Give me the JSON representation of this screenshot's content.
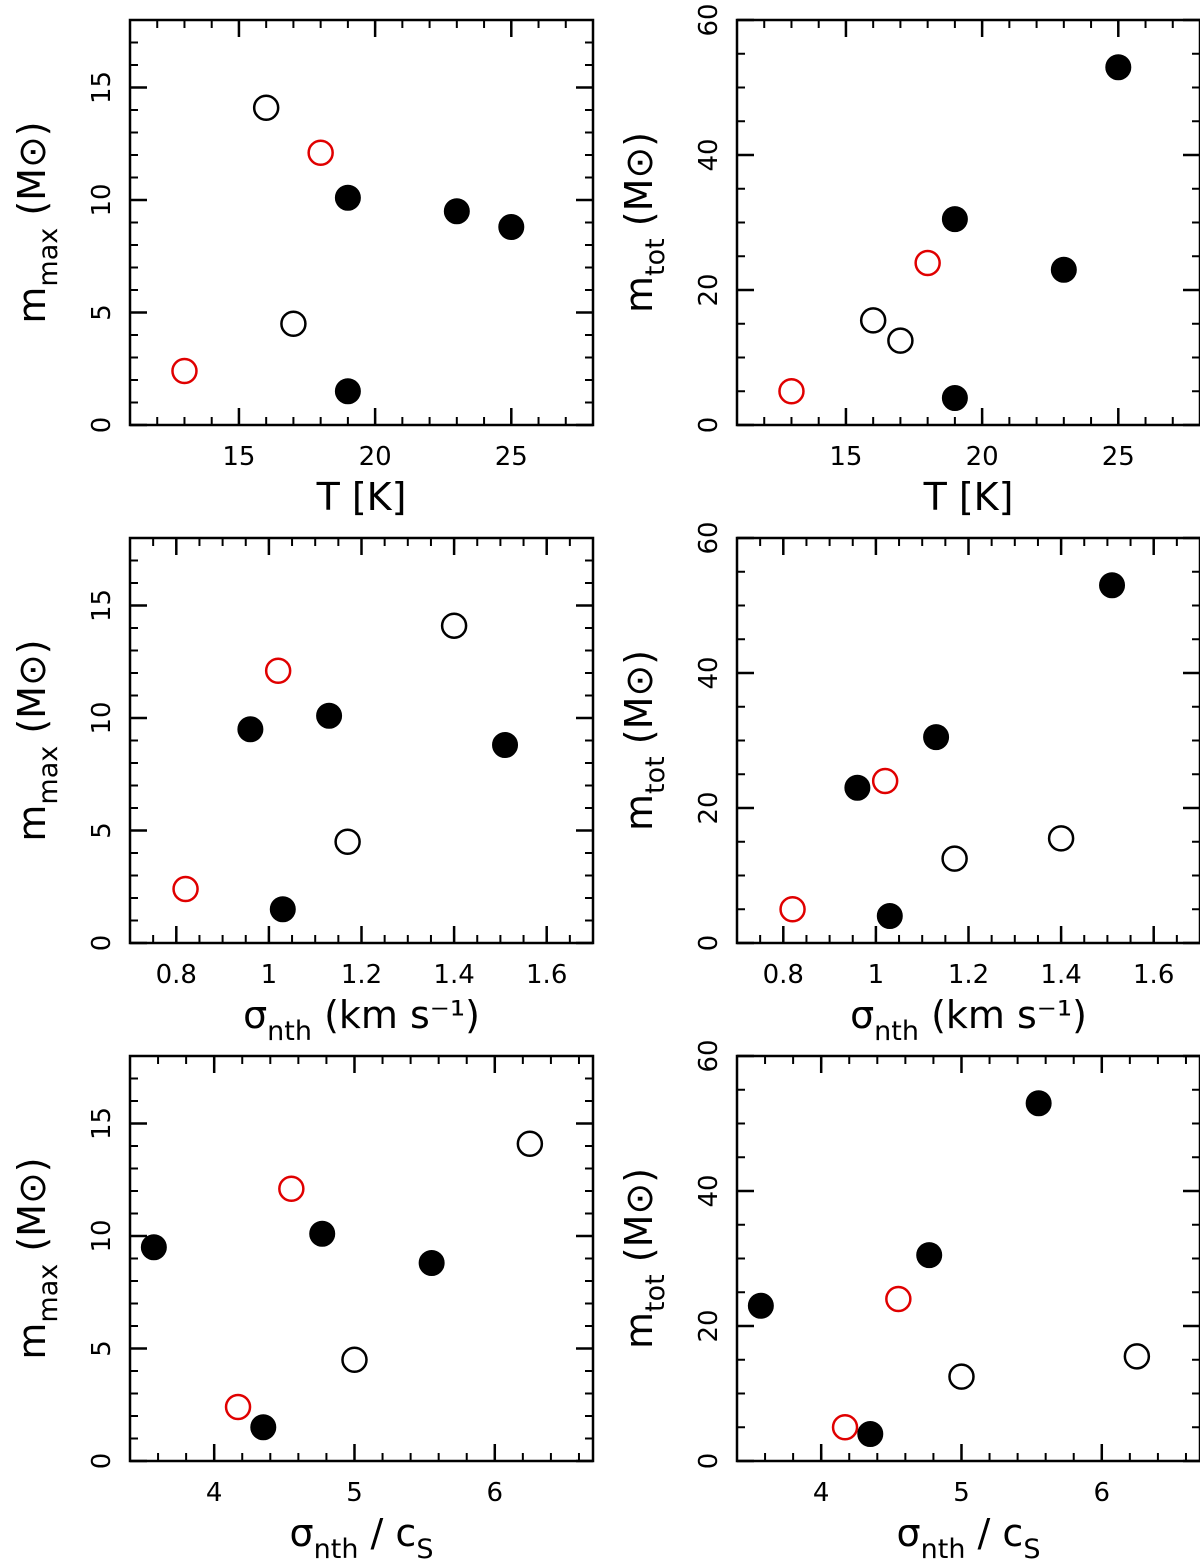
{
  "symbols": {
    "filled": "#000000",
    "open": "#000000",
    "open_red": "#e00000"
  },
  "chart_data": [
    {
      "type": "scatter",
      "row": 0,
      "col": 0,
      "x": [
        13,
        16,
        17,
        18,
        19,
        19,
        23,
        25
      ],
      "y": [
        2.4,
        14.1,
        4.5,
        12.1,
        10.1,
        1.5,
        9.5,
        8.8
      ],
      "style": [
        "open_red",
        "open",
        "open",
        "open_red",
        "filled",
        "filled",
        "filled",
        "filled"
      ],
      "xlabel": {
        "main": "T",
        "sub": "",
        "rest": " [K]"
      },
      "ylabel": {
        "main": "m",
        "sub": "max",
        "rest": " (M⊙)"
      },
      "xlim": [
        11,
        28
      ],
      "ylim": [
        0,
        18
      ],
      "xticks": [
        "15",
        "20",
        "25"
      ],
      "xtick_values": [
        15,
        20,
        25
      ],
      "yticks": [
        "0",
        "5",
        "10",
        "15"
      ],
      "ytick_values": [
        0,
        5,
        10,
        15
      ],
      "xminor": 1,
      "yminor": 1
    },
    {
      "type": "scatter",
      "row": 0,
      "col": 1,
      "x": [
        13,
        16,
        17,
        18,
        19,
        19,
        23,
        25
      ],
      "y": [
        5,
        15.5,
        12.5,
        24,
        30.5,
        4,
        23,
        53
      ],
      "style": [
        "open_red",
        "open",
        "open",
        "open_red",
        "filled",
        "filled",
        "filled",
        "filled"
      ],
      "xlabel": {
        "main": "T",
        "sub": "",
        "rest": " [K]"
      },
      "ylabel": {
        "main": "m",
        "sub": "tot",
        "rest": " (M⊙)"
      },
      "xlim": [
        11,
        28
      ],
      "ylim": [
        0,
        60
      ],
      "xticks": [
        "15",
        "20",
        "25"
      ],
      "xtick_values": [
        15,
        20,
        25
      ],
      "yticks": [
        "0",
        "20",
        "40",
        "60"
      ],
      "ytick_values": [
        0,
        20,
        40,
        60
      ],
      "xminor": 1,
      "yminor": 5
    },
    {
      "type": "scatter",
      "row": 1,
      "col": 0,
      "x": [
        0.82,
        0.96,
        1.02,
        1.03,
        1.13,
        1.17,
        1.4,
        1.51
      ],
      "y": [
        2.4,
        9.5,
        12.1,
        1.5,
        10.1,
        4.5,
        14.1,
        8.8
      ],
      "style": [
        "open_red",
        "filled",
        "open_red",
        "filled",
        "filled",
        "open",
        "open",
        "filled"
      ],
      "xlabel": {
        "main": "σ",
        "sub": "nth",
        "rest": " (km s⁻¹)"
      },
      "ylabel": {
        "main": "m",
        "sub": "max",
        "rest": " (M⊙)"
      },
      "xlim": [
        0.7,
        1.7
      ],
      "ylim": [
        0,
        18
      ],
      "xticks": [
        "0.8",
        "1",
        "1.2",
        "1.4",
        "1.6"
      ],
      "xtick_values": [
        0.8,
        1.0,
        1.2,
        1.4,
        1.6
      ],
      "yticks": [
        "0",
        "5",
        "10",
        "15"
      ],
      "ytick_values": [
        0,
        5,
        10,
        15
      ],
      "xminor": 0.05,
      "yminor": 1
    },
    {
      "type": "scatter",
      "row": 1,
      "col": 1,
      "x": [
        0.82,
        0.96,
        1.02,
        1.03,
        1.13,
        1.17,
        1.4,
        1.51
      ],
      "y": [
        5,
        23,
        24,
        4,
        30.5,
        12.5,
        15.5,
        53
      ],
      "style": [
        "open_red",
        "filled",
        "open_red",
        "filled",
        "filled",
        "open",
        "open",
        "filled"
      ],
      "xlabel": {
        "main": "σ",
        "sub": "nth",
        "rest": " (km s⁻¹)"
      },
      "ylabel": {
        "main": "m",
        "sub": "tot",
        "rest": " (M⊙)"
      },
      "xlim": [
        0.7,
        1.7
      ],
      "ylim": [
        0,
        60
      ],
      "xticks": [
        "0.8",
        "1",
        "1.2",
        "1.4",
        "1.6"
      ],
      "xtick_values": [
        0.8,
        1.0,
        1.2,
        1.4,
        1.6
      ],
      "yticks": [
        "0",
        "20",
        "40",
        "60"
      ],
      "ytick_values": [
        0,
        20,
        40,
        60
      ],
      "xminor": 0.05,
      "yminor": 5
    },
    {
      "type": "scatter",
      "row": 2,
      "col": 0,
      "x": [
        3.57,
        4.17,
        4.35,
        4.55,
        4.77,
        5.0,
        5.55,
        6.25
      ],
      "y": [
        9.5,
        2.4,
        1.5,
        12.1,
        10.1,
        4.5,
        8.8,
        14.1
      ],
      "style": [
        "filled",
        "open_red",
        "filled",
        "open_red",
        "filled",
        "open",
        "filled",
        "open"
      ],
      "xlabel": {
        "main": "σ",
        "sub": "nth",
        "rest": " / c",
        "sub2": "S"
      },
      "ylabel": {
        "main": "m",
        "sub": "max",
        "rest": " (M⊙)"
      },
      "xlim": [
        3.4,
        6.7
      ],
      "ylim": [
        0,
        18
      ],
      "xticks": [
        "4",
        "5",
        "6"
      ],
      "xtick_values": [
        4,
        5,
        6
      ],
      "yticks": [
        "0",
        "5",
        "10",
        "15"
      ],
      "ytick_values": [
        0,
        5,
        10,
        15
      ],
      "xminor": 0.2,
      "yminor": 1
    },
    {
      "type": "scatter",
      "row": 2,
      "col": 1,
      "x": [
        3.57,
        4.17,
        4.35,
        4.55,
        4.77,
        5.0,
        5.55,
        6.25
      ],
      "y": [
        23,
        5,
        4,
        24,
        30.5,
        12.5,
        53,
        15.5
      ],
      "style": [
        "filled",
        "open_red",
        "filled",
        "open_red",
        "filled",
        "open",
        "filled",
        "open"
      ],
      "xlabel": {
        "main": "σ",
        "sub": "nth",
        "rest": " / c",
        "sub2": "S"
      },
      "ylabel": {
        "main": "m",
        "sub": "tot",
        "rest": " (M⊙)"
      },
      "xlim": [
        3.4,
        6.7
      ],
      "ylim": [
        0,
        60
      ],
      "xticks": [
        "4",
        "5",
        "6"
      ],
      "xtick_values": [
        4,
        5,
        6
      ],
      "yticks": [
        "0",
        "20",
        "40",
        "60"
      ],
      "ytick_values": [
        0,
        20,
        40,
        60
      ],
      "xminor": 0.2,
      "yminor": 5
    }
  ]
}
